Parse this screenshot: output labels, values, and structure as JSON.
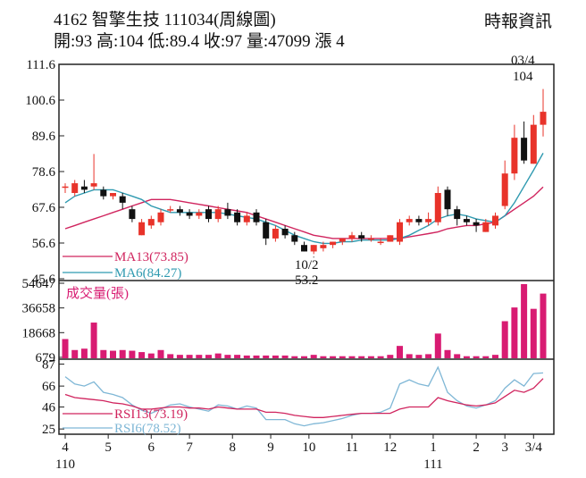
{
  "header": {
    "title": "4162  智擎生技 111034(周線圖)",
    "summary": "開:93 高:104 低:89.4 收:97 量:47099 漲 4",
    "source": "時報資訊"
  },
  "colors": {
    "up": "#e8332a",
    "down": "#111111",
    "ma13": "#d0245e",
    "ma6": "#2f9ab0",
    "volume": "#d81b72",
    "rsi13": "#d0245e",
    "rsi6": "#7fb7d6",
    "grid": "#222222"
  },
  "chart_data": {
    "type": "candlestick",
    "price_axis": {
      "ticks": [
        "111.6",
        "100.6",
        "89.6",
        "78.6",
        "67.6",
        "56.6",
        "45.6"
      ],
      "ylim": [
        45.6,
        111.6
      ]
    },
    "volume_axis": {
      "ticks": [
        "54647",
        "36658",
        "18668",
        "679"
      ],
      "ylim": [
        0,
        54647
      ]
    },
    "rsi_axis": {
      "ticks": [
        "87",
        "66",
        "46",
        "25"
      ],
      "ylim": [
        20,
        90
      ]
    },
    "x_tick_labels": [
      {
        "label": "4",
        "week": 0
      },
      {
        "label": "5",
        "week": 4.5
      },
      {
        "label": "6",
        "week": 9
      },
      {
        "label": "7",
        "week": 13
      },
      {
        "label": "8",
        "week": 17.5
      },
      {
        "label": "9",
        "week": 21.5
      },
      {
        "label": "10",
        "week": 25.5
      },
      {
        "label": "11",
        "week": 30
      },
      {
        "label": "12",
        "week": 34
      },
      {
        "label": "1",
        "week": 38.5
      },
      {
        "label": "2",
        "week": 43
      },
      {
        "label": "3",
        "week": 46
      },
      {
        "label": "3/4",
        "week": 49
      }
    ],
    "year_labels": [
      {
        "label": "110",
        "week": 0
      },
      {
        "label": "111",
        "week": 38.5
      }
    ],
    "annotations": {
      "high": {
        "label": "03/4",
        "value_label": "104",
        "week": 49,
        "value": 104
      },
      "low": {
        "label": "10/2",
        "value_label": "53.2",
        "week": 26,
        "value": 53.2
      }
    },
    "legend": [
      {
        "name": "MA13(73.85)",
        "series": "ma13"
      },
      {
        "name": "MA6(84.27)",
        "series": "ma6"
      }
    ],
    "volume_title": "成交量(張)",
    "rsi_legend": [
      {
        "name": "RSI13(73.19)",
        "series": "rsi13"
      },
      {
        "name": "RSI6(78.52)",
        "series": "rsi6"
      }
    ],
    "candles": [
      [
        74,
        75,
        72,
        74
      ],
      [
        72,
        76,
        71,
        75
      ],
      [
        74,
        76,
        72,
        73
      ],
      [
        74,
        84,
        73,
        75
      ],
      [
        73,
        74,
        70,
        71
      ],
      [
        71,
        72,
        70,
        72
      ],
      [
        71,
        72,
        67,
        69
      ],
      [
        67,
        68,
        63,
        64
      ],
      [
        59,
        64,
        59,
        63
      ],
      [
        62,
        65,
        61,
        64
      ],
      [
        63,
        67,
        62,
        66
      ],
      [
        67,
        68,
        66,
        67
      ],
      [
        67,
        68,
        65,
        66
      ],
      [
        66,
        67,
        64,
        65
      ],
      [
        65,
        67,
        64,
        66
      ],
      [
        67,
        68,
        63,
        64
      ],
      [
        64,
        68,
        63,
        67
      ],
      [
        67,
        69,
        64,
        65
      ],
      [
        66,
        67,
        62,
        63
      ],
      [
        63,
        66,
        62,
        65
      ],
      [
        66,
        67,
        62,
        63
      ],
      [
        63,
        64,
        56,
        58
      ],
      [
        58,
        62,
        57,
        61
      ],
      [
        61,
        62,
        58,
        59
      ],
      [
        59,
        60,
        56,
        57
      ],
      [
        56,
        57,
        54,
        54
      ],
      [
        54,
        56,
        53.2,
        56
      ],
      [
        55,
        57,
        54,
        56
      ],
      [
        56,
        57,
        55,
        57
      ],
      [
        57,
        58,
        56,
        58
      ],
      [
        58,
        60,
        57,
        59
      ],
      [
        59,
        60,
        57,
        58
      ],
      [
        58,
        59,
        57,
        58
      ],
      [
        57,
        58,
        56,
        57
      ],
      [
        57,
        59,
        57,
        59
      ],
      [
        57,
        64,
        56,
        63
      ],
      [
        63,
        65,
        62,
        64
      ],
      [
        64,
        65,
        62,
        63
      ],
      [
        63,
        66,
        62,
        64
      ],
      [
        63,
        74,
        62,
        72
      ],
      [
        73,
        74,
        65,
        67
      ],
      [
        67,
        68,
        62,
        64
      ],
      [
        64,
        65,
        62,
        63
      ],
      [
        63,
        64,
        60,
        62
      ],
      [
        60,
        64,
        60,
        63
      ],
      [
        62,
        66,
        61,
        65
      ],
      [
        68,
        82,
        67,
        78
      ],
      [
        78,
        93,
        76,
        89
      ],
      [
        89,
        94,
        81,
        82
      ],
      [
        81,
        96,
        81,
        93
      ],
      [
        93,
        104,
        89.4,
        97
      ]
    ],
    "series": [
      {
        "name": "MA13",
        "key": "ma13",
        "values": [
          61,
          62,
          63,
          64,
          65,
          66,
          67,
          68,
          69,
          70,
          70,
          70,
          69.5,
          69,
          68.5,
          68,
          67.5,
          67,
          66.5,
          66,
          65,
          64,
          63,
          62,
          61,
          60,
          59,
          58.5,
          58,
          58,
          58,
          58,
          58,
          58,
          58,
          58,
          58.5,
          59,
          59.5,
          60,
          61,
          61.5,
          62,
          62,
          62.5,
          63,
          65,
          67,
          69,
          71,
          73.85
        ]
      },
      {
        "name": "MA6",
        "key": "ma6",
        "values": [
          69,
          71,
          72,
          73,
          73,
          73,
          72,
          71,
          70,
          68,
          67,
          66,
          66,
          66,
          66,
          66,
          66,
          65.5,
          65,
          64.5,
          64,
          63,
          62,
          60.5,
          59,
          58,
          57,
          56.5,
          56.5,
          57,
          57,
          57.5,
          57.5,
          57.5,
          57.5,
          58,
          59,
          60.5,
          62,
          64,
          65,
          65.5,
          65,
          64,
          63.5,
          63,
          65,
          69,
          74,
          79,
          84.27
        ]
      }
    ],
    "volume": [
      14000,
      6000,
      7000,
      26000,
      6000,
      5500,
      6000,
      5500,
      4500,
      3500,
      6000,
      3000,
      2500,
      2500,
      2500,
      2500,
      3500,
      2500,
      2500,
      2000,
      2000,
      2000,
      2000,
      2000,
      1500,
      1500,
      2500,
      1500,
      1500,
      1500,
      1500,
      1500,
      1500,
      1500,
      2500,
      9000,
      3000,
      2500,
      3000,
      18000,
      6000,
      3000,
      1500,
      1500,
      1500,
      2500,
      27000,
      37000,
      54000,
      36000,
      47099
    ],
    "rsi13": [
      58,
      55,
      54,
      53,
      52,
      50,
      49,
      47,
      44,
      44,
      45,
      46,
      46,
      45,
      45,
      44,
      46,
      45,
      44,
      44,
      44,
      41,
      41,
      40,
      38,
      37,
      36,
      36,
      37,
      38,
      39,
      40,
      40,
      40,
      40,
      44,
      46,
      46,
      46,
      55,
      52,
      50,
      48,
      47,
      48,
      50,
      56,
      62,
      60,
      64,
      73.19
    ],
    "rsi6": [
      75,
      68,
      66,
      70,
      60,
      58,
      55,
      48,
      43,
      40,
      44,
      48,
      49,
      46,
      44,
      42,
      48,
      47,
      44,
      47,
      45,
      34,
      34,
      34,
      30,
      28,
      30,
      31,
      33,
      35,
      38,
      40,
      40,
      41,
      45,
      68,
      72,
      68,
      66,
      84,
      60,
      52,
      47,
      45,
      48,
      52,
      64,
      72,
      66,
      78,
      78.52
    ]
  }
}
